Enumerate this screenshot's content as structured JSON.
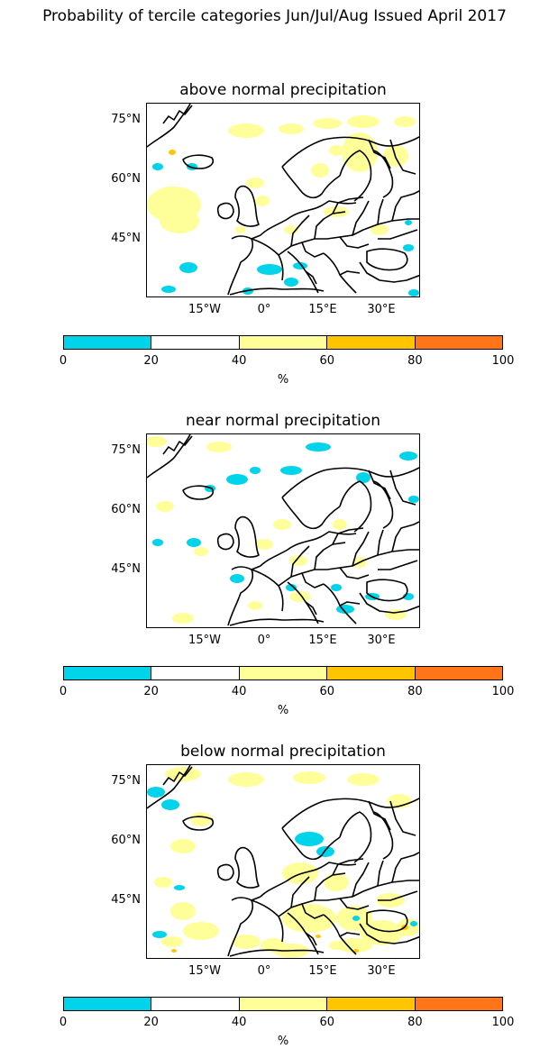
{
  "figure": {
    "title": "Probability of tercile categories Jun/Jul/Aug Issued April 2017"
  },
  "axes": {
    "lat_labels": [
      "75°N",
      "60°N",
      "45°N"
    ],
    "lon_labels": [
      "15°W",
      "0°",
      "15°E",
      "30°E"
    ]
  },
  "colorbar": {
    "ticks": [
      "0",
      "20",
      "40",
      "60",
      "80",
      "100"
    ],
    "unit": "%",
    "colors": [
      "#00d4ea",
      "#ffffff",
      "#ffff99",
      "#ffc600",
      "#ff7518"
    ]
  },
  "panels": [
    {
      "title": "above normal precipitation"
    },
    {
      "title": "near normal precipitation"
    },
    {
      "title": "below normal precipitation"
    }
  ],
  "map_data": {
    "type": "tercile_probability_maps",
    "region": "Europe / North Atlantic",
    "lat_range": [
      "30°N",
      "80°N"
    ],
    "lon_range": [
      "30°W",
      "40°E"
    ],
    "color_scale": [
      {
        "range": "0-20",
        "color": "#00d4ea"
      },
      {
        "range": "20-40",
        "color": "#ffffff"
      },
      {
        "range": "40-60",
        "color": "#ffff99"
      },
      {
        "range": "60-80",
        "color": "#ffc600"
      },
      {
        "range": "80-100",
        "color": "#ff7518"
      }
    ]
  }
}
